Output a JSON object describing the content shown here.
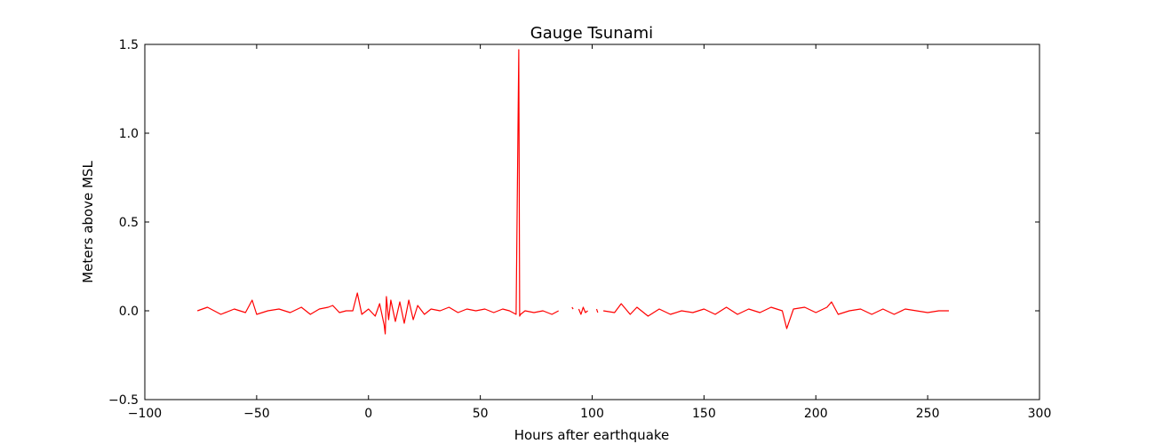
{
  "chart_data": {
    "type": "line",
    "title": "Gauge Tsunami",
    "xlabel": "Hours after earthquake",
    "ylabel": "Meters above MSL",
    "xlim": [
      -100,
      300
    ],
    "ylim": [
      -0.5,
      1.5
    ],
    "xticks": [
      -100,
      -50,
      0,
      50,
      100,
      150,
      200,
      250,
      300
    ],
    "xtick_labels": [
      "−100",
      "−50",
      "0",
      "50",
      "100",
      "150",
      "200",
      "250",
      "300"
    ],
    "yticks": [
      -0.5,
      0.0,
      0.5,
      1.0,
      1.5
    ],
    "ytick_labels": [
      "−0.5",
      "0.0",
      "0.5",
      "1.0",
      "1.5"
    ],
    "grid": false,
    "series": [
      {
        "color": "#ff0000",
        "segments": [
          {
            "x": [
              -76.5,
              -72,
              -66,
              -60,
              -55,
              -52,
              -50,
              -45,
              -40,
              -35,
              -30,
              -26,
              -22,
              -18,
              -16,
              -13,
              -10,
              -7,
              -5,
              -3,
              0,
              3,
              5,
              7,
              7.5,
              8,
              9,
              10,
              12,
              14,
              16,
              18,
              20,
              22,
              25,
              28,
              32,
              36,
              40,
              44,
              48,
              52,
              56,
              60,
              63,
              66,
              67.2,
              67.6,
              68,
              70,
              74,
              78,
              82,
              85
            ],
            "y": [
              0.0,
              0.02,
              -0.02,
              0.01,
              -0.01,
              0.06,
              -0.02,
              0.0,
              0.01,
              -0.01,
              0.02,
              -0.02,
              0.01,
              0.02,
              0.03,
              -0.01,
              0.0,
              0.0,
              0.1,
              -0.02,
              0.01,
              -0.03,
              0.04,
              -0.08,
              -0.13,
              0.08,
              -0.05,
              0.06,
              -0.06,
              0.05,
              -0.07,
              0.06,
              -0.05,
              0.03,
              -0.02,
              0.01,
              0.0,
              0.02,
              -0.01,
              0.01,
              0.0,
              0.01,
              -0.01,
              0.01,
              0.0,
              -0.02,
              1.47,
              -0.03,
              -0.02,
              0.0,
              -0.01,
              0.0,
              -0.02,
              0.0
            ]
          },
          {
            "x": [
              91,
              91.5
            ],
            "y": [
              0.02,
              0.01
            ]
          },
          {
            "x": [
              94,
              95,
              96,
              97,
              98
            ],
            "y": [
              0.01,
              -0.02,
              0.02,
              -0.01,
              0.0
            ]
          },
          {
            "x": [
              102,
              102.5
            ],
            "y": [
              0.01,
              -0.01
            ]
          },
          {
            "x": [
              105,
              110,
              113,
              117,
              120,
              125,
              130,
              135,
              140,
              145,
              150,
              155,
              160,
              165,
              170,
              175,
              180,
              185,
              187,
              190,
              195,
              200,
              205,
              207,
              210,
              215,
              220,
              225,
              230,
              235,
              240,
              245,
              250,
              255,
              259.5
            ],
            "y": [
              0.0,
              -0.01,
              0.04,
              -0.02,
              0.02,
              -0.03,
              0.01,
              -0.02,
              0.0,
              -0.01,
              0.01,
              -0.02,
              0.02,
              -0.02,
              0.01,
              -0.01,
              0.02,
              0.0,
              -0.1,
              0.01,
              0.02,
              -0.01,
              0.02,
              0.05,
              -0.02,
              0.0,
              0.01,
              -0.02,
              0.01,
              -0.02,
              0.01,
              0.0,
              -0.01,
              0.0,
              0.0
            ]
          }
        ]
      }
    ]
  }
}
